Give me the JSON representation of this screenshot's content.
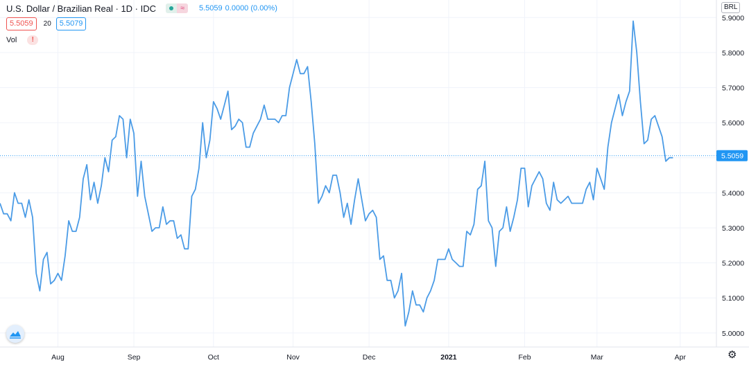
{
  "header": {
    "title": "U.S. Dollar / Brazilian Real · 1D · IDC",
    "status_icon": "market-open-dot-icon",
    "delay_icon_glyph": "≈",
    "last_price": "5.5059",
    "change": "0.0000 (0.00%)"
  },
  "indicator": {
    "ma_value_1": "5.5059",
    "period": "20",
    "ma_value_2": "5.5079"
  },
  "volume": {
    "label": "Vol",
    "warning_glyph": "!"
  },
  "currency_button": "BRL",
  "price_label": "5.5059",
  "settings_glyph": "⚙",
  "colors": {
    "line": "#4a9be6",
    "accent": "#2196f3",
    "grid": "#f0f3fa",
    "axis_text": "#131722",
    "warn": "#ef5350"
  },
  "chart_data": {
    "type": "line",
    "y_ticks": [
      "5.0000",
      "5.1000",
      "5.2000",
      "5.3000",
      "5.4000",
      "5.5000",
      "5.6000",
      "5.7000",
      "5.8000",
      "5.9000"
    ],
    "x_ticks": [
      {
        "label": "Aug",
        "index": 16,
        "bold": false
      },
      {
        "label": "Sep",
        "index": 37,
        "bold": false
      },
      {
        "label": "Oct",
        "index": 59,
        "bold": false
      },
      {
        "label": "Nov",
        "index": 81,
        "bold": false
      },
      {
        "label": "Dec",
        "index": 102,
        "bold": false
      },
      {
        "label": "2021",
        "index": 124,
        "bold": true
      },
      {
        "label": "Feb",
        "index": 145,
        "bold": false
      },
      {
        "label": "Mar",
        "index": 165,
        "bold": false
      },
      {
        "label": "Apr",
        "index": 188,
        "bold": false
      }
    ],
    "ylim": [
      4.96,
      5.95
    ],
    "x_index_range": [
      0,
      198
    ],
    "grid": true,
    "last_value": 5.5059,
    "series": [
      {
        "values": [
          5.37,
          5.34,
          5.34,
          5.32,
          5.4,
          5.37,
          5.37,
          5.33,
          5.38,
          5.33,
          5.17,
          5.12,
          5.21,
          5.23,
          5.14,
          5.15,
          5.17,
          5.15,
          5.22,
          5.32,
          5.29,
          5.29,
          5.33,
          5.44,
          5.48,
          5.38,
          5.43,
          5.37,
          5.42,
          5.5,
          5.46,
          5.55,
          5.56,
          5.62,
          5.61,
          5.5,
          5.61,
          5.57,
          5.39,
          5.49,
          5.39,
          5.34,
          5.29,
          5.3,
          5.3,
          5.36,
          5.31,
          5.32,
          5.32,
          5.27,
          5.28,
          5.24,
          5.24,
          5.39,
          5.41,
          5.47,
          5.6,
          5.5,
          5.55,
          5.66,
          5.64,
          5.61,
          5.65,
          5.69,
          5.58,
          5.59,
          5.61,
          5.6,
          5.53,
          5.53,
          5.57,
          5.59,
          5.61,
          5.65,
          5.61,
          5.61,
          5.61,
          5.6,
          5.62,
          5.62,
          5.7,
          5.74,
          5.78,
          5.74,
          5.74,
          5.76,
          5.66,
          5.54,
          5.37,
          5.39,
          5.42,
          5.4,
          5.45,
          5.45,
          5.4,
          5.33,
          5.37,
          5.31,
          5.38,
          5.44,
          5.38,
          5.32,
          5.34,
          5.35,
          5.33,
          5.21,
          5.22,
          5.15,
          5.15,
          5.1,
          5.12,
          5.17,
          5.02,
          5.06,
          5.12,
          5.08,
          5.08,
          5.06,
          5.1,
          5.12,
          5.15,
          5.21,
          5.21,
          5.21,
          5.24,
          5.21,
          5.2,
          5.19,
          5.19,
          5.29,
          5.28,
          5.31,
          5.41,
          5.42,
          5.49,
          5.32,
          5.3,
          5.19,
          5.29,
          5.3,
          5.36,
          5.29,
          5.33,
          5.38,
          5.47,
          5.47,
          5.36,
          5.42,
          5.44,
          5.46,
          5.44,
          5.37,
          5.35,
          5.43,
          5.38,
          5.37,
          5.38,
          5.39,
          5.37,
          5.37,
          5.37,
          5.37,
          5.41,
          5.43,
          5.38,
          5.47,
          5.44,
          5.41,
          5.53,
          5.6,
          5.64,
          5.68,
          5.62,
          5.66,
          5.69,
          5.89,
          5.8,
          5.66,
          5.54,
          5.55,
          5.61,
          5.62,
          5.59,
          5.56,
          5.49,
          5.5,
          5.5
        ]
      }
    ]
  }
}
